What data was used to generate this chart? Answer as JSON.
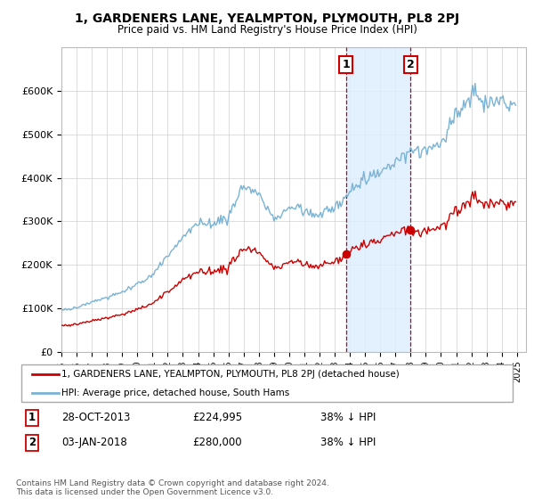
{
  "title": "1, GARDENERS LANE, YEALMPTON, PLYMOUTH, PL8 2PJ",
  "subtitle": "Price paid vs. HM Land Registry's House Price Index (HPI)",
  "legend_property": "1, GARDENERS LANE, YEALMPTON, PLYMOUTH, PL8 2PJ (detached house)",
  "legend_hpi": "HPI: Average price, detached house, South Hams",
  "transaction1_date": "28-OCT-2013",
  "transaction1_price": 224995,
  "transaction1_label": "1",
  "transaction1_hpi_pct": "38% ↓ HPI",
  "transaction2_date": "03-JAN-2018",
  "transaction2_price": 280000,
  "transaction2_label": "2",
  "transaction2_hpi_pct": "38% ↓ HPI",
  "footer": "Contains HM Land Registry data © Crown copyright and database right 2024.\nThis data is licensed under the Open Government Licence v3.0.",
  "hpi_color": "#7ab3d4",
  "property_color": "#cc0000",
  "highlight_color": "#ddeeff",
  "background_color": "#ffffff",
  "ylim_min": 0,
  "ylim_max": 700000,
  "yticks": [
    0,
    100000,
    200000,
    300000,
    400000,
    500000,
    600000
  ],
  "ytick_labels": [
    "£0",
    "£100K",
    "£200K",
    "£300K",
    "£400K",
    "£500K",
    "£600K"
  ],
  "hpi_year_anchors": {
    "1995": 95000,
    "1996": 102000,
    "1997": 115000,
    "1998": 125000,
    "1999": 138000,
    "2000": 155000,
    "2001": 178000,
    "2002": 220000,
    "2003": 265000,
    "2004": 295000,
    "2005": 295000,
    "2006": 310000,
    "2007": 380000,
    "2008": 360000,
    "2009": 305000,
    "2010": 330000,
    "2011": 325000,
    "2012": 315000,
    "2013": 330000,
    "2014": 370000,
    "2015": 395000,
    "2016": 415000,
    "2017": 440000,
    "2018": 460000,
    "2019": 465000,
    "2020": 475000,
    "2021": 545000,
    "2022": 595000,
    "2023": 575000,
    "2024": 580000,
    "2025": 570000
  },
  "prop_year_anchors": {
    "1995": 55000,
    "1996": 59000,
    "1997": 67000,
    "1998": 73000,
    "1999": 80000,
    "2000": 90000,
    "2001": 103000,
    "2002": 128000,
    "2003": 155000,
    "2004": 172000,
    "2005": 172000,
    "2006": 180000,
    "2007": 215000,
    "2008": 205000,
    "2009": 185000,
    "2010": 190000,
    "2011": 188000,
    "2012": 183000,
    "2013": 220000,
    "2014": 240000,
    "2015": 255000,
    "2016": 268000,
    "2017": 272000,
    "2018": 290000,
    "2019": 295000,
    "2020": 295000,
    "2021": 330000,
    "2022": 365000,
    "2023": 350000,
    "2024": 345000,
    "2025": 340000
  }
}
